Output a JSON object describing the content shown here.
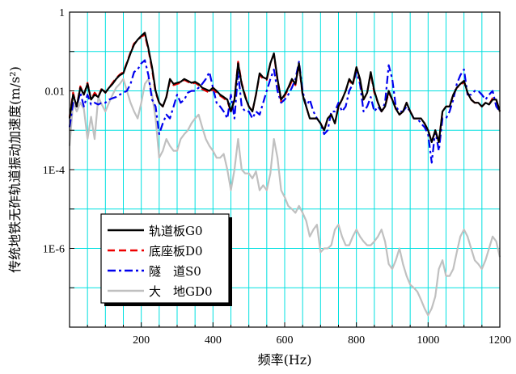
{
  "chart_data": {
    "type": "line",
    "xlabel": "频率(Hz)",
    "ylabel": "传统地铁无砟轨道振动加速度(m/s²)",
    "xlim": [
      0,
      1200
    ],
    "ylim": [
      1e-08,
      1
    ],
    "yscale": "log",
    "grid": true,
    "grid_color": "#00e0e0",
    "legend_position": "lower-left",
    "x_ticks": [
      200,
      400,
      600,
      800,
      1000,
      1200
    ],
    "x_tick_labels": [
      "200",
      "400",
      "600",
      "800",
      "1000",
      "1200"
    ],
    "y_ticks": [
      1,
      0.01,
      0.0001,
      1e-06
    ],
    "y_tick_labels": [
      "1",
      "0.01",
      "1E-4",
      "1E-6"
    ],
    "series": [
      {
        "name": "轨道板G0",
        "color": "#000000",
        "style": "solid",
        "x": [
          0,
          10,
          20,
          30,
          40,
          50,
          60,
          70,
          80,
          90,
          100,
          110,
          120,
          130,
          140,
          150,
          160,
          170,
          180,
          190,
          200,
          210,
          220,
          230,
          240,
          250,
          260,
          270,
          280,
          290,
          300,
          310,
          320,
          330,
          340,
          350,
          360,
          370,
          380,
          390,
          400,
          410,
          420,
          430,
          440,
          450,
          460,
          470,
          480,
          490,
          500,
          510,
          520,
          530,
          540,
          550,
          560,
          570,
          580,
          590,
          600,
          610,
          620,
          630,
          640,
          650,
          660,
          670,
          680,
          690,
          700,
          710,
          720,
          730,
          740,
          750,
          760,
          770,
          780,
          790,
          800,
          810,
          820,
          830,
          840,
          850,
          860,
          870,
          880,
          890,
          900,
          910,
          920,
          930,
          940,
          950,
          960,
          970,
          980,
          990,
          1000,
          1010,
          1020,
          1030,
          1040,
          1050,
          1060,
          1070,
          1080,
          1090,
          1100,
          1110,
          1120,
          1130,
          1140,
          1150,
          1160,
          1170,
          1180,
          1190,
          1200
        ],
        "y": [
          0.002,
          0.008,
          0.004,
          0.012,
          0.008,
          0.015,
          0.006,
          0.008,
          0.007,
          0.011,
          0.009,
          0.012,
          0.015,
          0.02,
          0.025,
          0.028,
          0.05,
          0.09,
          0.15,
          0.2,
          0.25,
          0.3,
          0.12,
          0.04,
          0.01,
          0.005,
          0.004,
          0.007,
          0.02,
          0.015,
          0.016,
          0.017,
          0.02,
          0.018,
          0.016,
          0.017,
          0.015,
          0.012,
          0.011,
          0.01,
          0.012,
          0.01,
          0.008,
          0.007,
          0.006,
          0.003,
          0.006,
          0.05,
          0.015,
          0.007,
          0.004,
          0.003,
          0.008,
          0.028,
          0.022,
          0.02,
          0.05,
          0.09,
          0.02,
          0.006,
          0.008,
          0.012,
          0.02,
          0.015,
          0.05,
          0.008,
          0.004,
          0.002,
          0.002,
          0.002,
          0.0015,
          0.001,
          0.002,
          0.0025,
          0.0015,
          0.004,
          0.006,
          0.01,
          0.02,
          0.015,
          0.04,
          0.02,
          0.006,
          0.009,
          0.03,
          0.01,
          0.005,
          0.003,
          0.004,
          0.01,
          0.006,
          0.0035,
          0.0025,
          0.003,
          0.005,
          0.003,
          0.002,
          0.002,
          0.002,
          0.0015,
          0.001,
          0.0005,
          0.001,
          0.0005,
          0.003,
          0.004,
          0.004,
          0.008,
          0.012,
          0.015,
          0.018,
          0.009,
          0.006,
          0.005,
          0.005,
          0.004,
          0.005,
          0.0045,
          0.006,
          0.006,
          0.003
        ]
      },
      {
        "name": "底座板D0",
        "color": "#ee0000",
        "style": "dashed",
        "x": [
          0,
          10,
          20,
          30,
          40,
          50,
          60,
          70,
          80,
          90,
          100,
          110,
          120,
          130,
          140,
          150,
          160,
          170,
          180,
          190,
          200,
          210,
          220,
          230,
          240,
          250,
          260,
          270,
          280,
          290,
          300,
          310,
          320,
          330,
          340,
          350,
          360,
          370,
          380,
          390,
          400,
          410,
          420,
          430,
          440,
          450,
          460,
          470,
          480,
          490,
          500,
          510,
          520,
          530,
          540,
          550,
          560,
          570,
          580,
          590,
          600,
          610,
          620,
          630,
          640,
          650,
          660,
          670,
          680,
          690,
          700,
          710,
          720,
          730,
          740,
          750,
          760,
          770,
          780,
          790,
          800,
          810,
          820,
          830,
          840,
          850,
          860,
          870,
          880,
          890,
          900,
          910,
          920,
          930,
          940,
          950,
          960,
          970,
          980,
          990,
          1000,
          1010,
          1020,
          1030,
          1040,
          1050,
          1060,
          1070,
          1080,
          1090,
          1100,
          1110,
          1120,
          1130,
          1140,
          1150,
          1160,
          1170,
          1180,
          1190,
          1200
        ],
        "y": [
          0.0022,
          0.009,
          0.004,
          0.013,
          0.008,
          0.016,
          0.006,
          0.009,
          0.007,
          0.012,
          0.009,
          0.012,
          0.016,
          0.021,
          0.026,
          0.03,
          0.052,
          0.095,
          0.16,
          0.19,
          0.24,
          0.26,
          0.11,
          0.035,
          0.009,
          0.005,
          0.004,
          0.007,
          0.018,
          0.014,
          0.015,
          0.016,
          0.019,
          0.017,
          0.015,
          0.016,
          0.014,
          0.011,
          0.01,
          0.009,
          0.011,
          0.009,
          0.0075,
          0.0065,
          0.0055,
          0.003,
          0.006,
          0.055,
          0.016,
          0.0075,
          0.004,
          0.003,
          0.008,
          0.026,
          0.02,
          0.019,
          0.05,
          0.085,
          0.019,
          0.0055,
          0.0075,
          0.011,
          0.018,
          0.014,
          0.048,
          0.0075,
          0.004,
          0.002,
          0.002,
          0.002,
          0.0015,
          0.001,
          0.002,
          0.0025,
          0.0015,
          0.004,
          0.006,
          0.01,
          0.019,
          0.014,
          0.038,
          0.019,
          0.006,
          0.009,
          0.028,
          0.009,
          0.005,
          0.003,
          0.004,
          0.009,
          0.006,
          0.0035,
          0.0025,
          0.003,
          0.005,
          0.003,
          0.002,
          0.002,
          0.002,
          0.0015,
          0.001,
          0.0005,
          0.001,
          0.0005,
          0.003,
          0.004,
          0.004,
          0.008,
          0.012,
          0.014,
          0.017,
          0.009,
          0.006,
          0.005,
          0.005,
          0.004,
          0.005,
          0.0045,
          0.0065,
          0.006,
          0.003
        ]
      },
      {
        "name": "隧　道S0",
        "color": "#0000ee",
        "style": "dashdot",
        "x": [
          0,
          10,
          20,
          30,
          40,
          50,
          60,
          70,
          80,
          90,
          100,
          110,
          120,
          130,
          140,
          150,
          160,
          170,
          180,
          190,
          200,
          210,
          220,
          230,
          240,
          250,
          260,
          270,
          280,
          290,
          300,
          310,
          320,
          330,
          340,
          350,
          360,
          370,
          380,
          390,
          400,
          410,
          420,
          430,
          440,
          450,
          460,
          470,
          480,
          490,
          500,
          510,
          520,
          530,
          540,
          550,
          560,
          570,
          580,
          590,
          600,
          610,
          620,
          630,
          640,
          650,
          660,
          670,
          680,
          690,
          700,
          710,
          720,
          730,
          740,
          750,
          760,
          770,
          780,
          790,
          800,
          810,
          820,
          830,
          840,
          850,
          860,
          870,
          880,
          890,
          900,
          910,
          920,
          930,
          940,
          950,
          960,
          970,
          980,
          990,
          1000,
          1010,
          1020,
          1030,
          1040,
          1050,
          1060,
          1070,
          1080,
          1090,
          1100,
          1110,
          1120,
          1130,
          1140,
          1150,
          1160,
          1170,
          1180,
          1190,
          1200
        ],
        "y": [
          0.0012,
          0.005,
          0.004,
          0.009,
          0.004,
          0.008,
          0.0045,
          0.005,
          0.0045,
          0.005,
          0.005,
          0.006,
          0.0065,
          0.007,
          0.008,
          0.009,
          0.01,
          0.015,
          0.03,
          0.035,
          0.05,
          0.06,
          0.025,
          0.006,
          0.004,
          0.0008,
          0.0015,
          0.0025,
          0.002,
          0.004,
          0.008,
          0.005,
          0.006,
          0.009,
          0.01,
          0.01,
          0.012,
          0.015,
          0.02,
          0.03,
          0.012,
          0.005,
          0.004,
          0.003,
          0.002,
          0.008,
          0.002,
          0.03,
          0.004,
          0.003,
          0.003,
          0.002,
          0.003,
          0.0025,
          0.005,
          0.01,
          0.02,
          0.035,
          0.01,
          0.005,
          0.006,
          0.008,
          0.012,
          0.02,
          0.055,
          0.01,
          0.004,
          0.006,
          0.003,
          0.002,
          0.0015,
          0.0008,
          0.001,
          0.003,
          0.003,
          0.005,
          0.003,
          0.004,
          0.01,
          0.015,
          0.03,
          0.015,
          0.003,
          0.004,
          0.007,
          0.003,
          0.004,
          0.003,
          0.005,
          0.045,
          0.02,
          0.004,
          0.003,
          0.003,
          0.004,
          0.003,
          0.002,
          0.002,
          0.0015,
          0.0012,
          0.0008,
          0.00015,
          0.001,
          0.0003,
          0.002,
          0.002,
          0.003,
          0.006,
          0.015,
          0.025,
          0.035,
          0.008,
          0.008,
          0.01,
          0.01,
          0.008,
          0.006,
          0.008,
          0.01,
          0.004,
          0.003
        ]
      },
      {
        "name": "大　地GD0",
        "color": "#c0c0c0",
        "style": "solid",
        "x": [
          0,
          10,
          20,
          30,
          40,
          50,
          60,
          70,
          80,
          90,
          100,
          110,
          120,
          130,
          140,
          150,
          160,
          170,
          180,
          190,
          200,
          210,
          220,
          230,
          240,
          250,
          260,
          270,
          280,
          290,
          300,
          310,
          320,
          330,
          340,
          350,
          360,
          370,
          380,
          390,
          400,
          410,
          420,
          430,
          440,
          450,
          460,
          470,
          480,
          490,
          500,
          510,
          520,
          530,
          540,
          550,
          560,
          570,
          580,
          590,
          600,
          610,
          620,
          630,
          640,
          650,
          660,
          670,
          680,
          690,
          700,
          710,
          720,
          730,
          740,
          750,
          760,
          770,
          780,
          790,
          800,
          810,
          820,
          830,
          840,
          850,
          860,
          870,
          880,
          890,
          900,
          910,
          920,
          930,
          940,
          950,
          960,
          970,
          980,
          990,
          1000,
          1010,
          1020,
          1030,
          1040,
          1050,
          1060,
          1070,
          1080,
          1090,
          1100,
          1110,
          1120,
          1130,
          1140,
          1150,
          1160,
          1170,
          1180,
          1190,
          1200
        ],
        "y": [
          0.0004,
          0.005,
          0.003,
          0.005,
          0.0035,
          0.0006,
          0.0022,
          0.0006,
          0.007,
          0.0045,
          0.003,
          0.005,
          0.008,
          0.012,
          0.015,
          0.02,
          0.01,
          0.005,
          0.003,
          0.002,
          0.005,
          0.015,
          0.02,
          0.008,
          0.002,
          0.0002,
          0.0003,
          0.0006,
          0.0004,
          0.0003,
          0.0003,
          0.0006,
          0.0008,
          0.001,
          0.0015,
          0.002,
          0.0025,
          0.0012,
          0.0006,
          0.0004,
          0.0003,
          0.0002,
          0.0002,
          0.00025,
          0.0001,
          3e-05,
          0.0001,
          0.0006,
          0.0001,
          8e-05,
          8e-05,
          6e-05,
          9e-05,
          3e-05,
          4e-05,
          3e-05,
          8e-05,
          0.0006,
          0.0002,
          3e-05,
          2e-05,
          1.2e-05,
          1e-05,
          8e-06,
          1.2e-05,
          8e-06,
          5e-06,
          2e-06,
          3e-06,
          4e-06,
          8e-07,
          1e-06,
          1e-06,
          1.2e-06,
          3e-06,
          4e-06,
          2e-06,
          1.2e-06,
          1.2e-06,
          2e-06,
          3e-06,
          2e-06,
          1.5e-06,
          1.2e-06,
          1.2e-06,
          1.5e-06,
          2e-06,
          3e-06,
          1.5e-06,
          4e-07,
          3e-07,
          5e-07,
          1e-06,
          4e-07,
          2e-07,
          1.2e-07,
          1e-07,
          8e-08,
          5e-08,
          3e-08,
          2e-08,
          3e-08,
          6e-08,
          3e-07,
          5e-07,
          2e-07,
          2e-07,
          3e-07,
          8e-07,
          2e-06,
          3e-06,
          2e-06,
          1e-06,
          5e-07,
          4e-07,
          3e-07,
          5e-07,
          1e-06,
          2e-06,
          1.5e-06,
          6e-07
        ]
      }
    ]
  }
}
